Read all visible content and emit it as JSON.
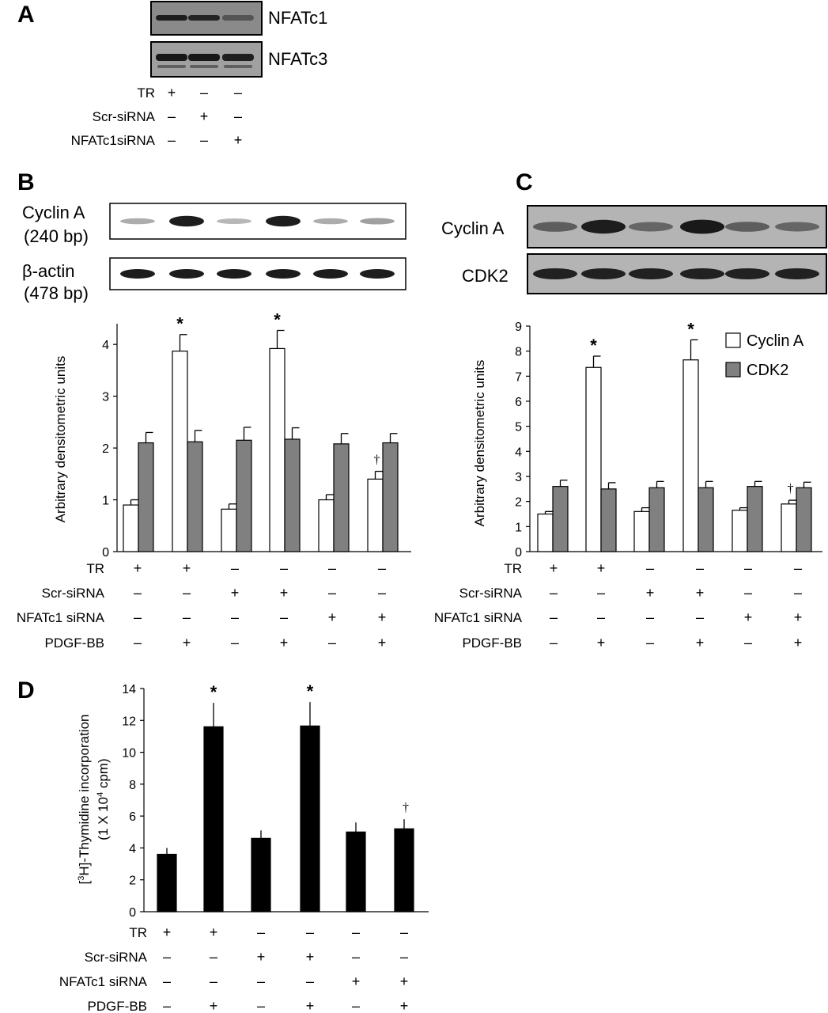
{
  "panels": {
    "A": {
      "letter": "A",
      "blots": [
        {
          "label": "NFATc1",
          "bands": [
            0.9,
            0.85,
            0.45
          ],
          "bg": "#8a8a8a"
        },
        {
          "label": "NFATc3",
          "bands": [
            0.95,
            0.95,
            0.9
          ],
          "bg": "#a0a0a0"
        }
      ],
      "treatments": [
        {
          "label": "TR",
          "marks": [
            "+",
            "–",
            "–"
          ]
        },
        {
          "label": "Scr-siRNA",
          "marks": [
            "–",
            "+",
            "–"
          ]
        },
        {
          "label": "NFATc1siRNA",
          "marks": [
            "–",
            "–",
            "+"
          ]
        }
      ]
    },
    "B": {
      "letter": "B",
      "blots": [
        {
          "label1": "Cyclin A",
          "label2": "(240 bp)",
          "bands": [
            0.35,
            0.95,
            0.3,
            0.95,
            0.35,
            0.4
          ]
        },
        {
          "label1": "β-actin",
          "label2": "(478 bp)",
          "bands": [
            0.95,
            0.95,
            0.95,
            0.95,
            0.95,
            0.95
          ]
        }
      ],
      "treatments": [
        {
          "label": "TR",
          "marks": [
            "+",
            "+",
            "–",
            "–",
            "–",
            "–"
          ]
        },
        {
          "label": "Scr-siRNA",
          "marks": [
            "–",
            "–",
            "+",
            "+",
            "–",
            "–"
          ]
        },
        {
          "label": "NFATc1 siRNA",
          "marks": [
            "–",
            "–",
            "–",
            "–",
            "+",
            "+"
          ]
        },
        {
          "label": "PDGF-BB",
          "marks": [
            "–",
            "+",
            "–",
            "+",
            "–",
            "+"
          ]
        }
      ]
    },
    "C": {
      "letter": "C",
      "blots": [
        {
          "label": "Cyclin A",
          "bands": [
            0.55,
            0.95,
            0.5,
            0.98,
            0.55,
            0.5
          ]
        },
        {
          "label": "CDK2",
          "bands": [
            0.92,
            0.92,
            0.92,
            0.92,
            0.92,
            0.92
          ]
        }
      ],
      "legend": [
        {
          "name": "Cyclin A",
          "color": "#ffffff"
        },
        {
          "name": "CDK2",
          "color": "#808080"
        }
      ],
      "treatments": [
        {
          "label": "TR",
          "marks": [
            "+",
            "+",
            "–",
            "–",
            "–",
            "–"
          ]
        },
        {
          "label": "Scr-siRNA",
          "marks": [
            "–",
            "–",
            "+",
            "+",
            "–",
            "–"
          ]
        },
        {
          "label": "NFATc1 siRNA",
          "marks": [
            "–",
            "–",
            "–",
            "–",
            "+",
            "+"
          ]
        },
        {
          "label": "PDGF-BB",
          "marks": [
            "–",
            "+",
            "–",
            "+",
            "–",
            "+"
          ]
        }
      ]
    },
    "D": {
      "letter": "D",
      "treatments": [
        {
          "label": "TR",
          "marks": [
            "+",
            "+",
            "–",
            "–",
            "–",
            "–"
          ]
        },
        {
          "label": "Scr-siRNA",
          "marks": [
            "–",
            "–",
            "+",
            "+",
            "–",
            "–"
          ]
        },
        {
          "label": "NFATc1 siRNA",
          "marks": [
            "–",
            "–",
            "–",
            "–",
            "+",
            "+"
          ]
        },
        {
          "label": "PDGF-BB",
          "marks": [
            "–",
            "+",
            "–",
            "+",
            "–",
            "+"
          ]
        }
      ]
    }
  },
  "colors": {
    "white_bar": "#ffffff",
    "gray_bar": "#808080",
    "black_bar": "#000000"
  },
  "chart_data": [
    {
      "panel": "B",
      "type": "bar",
      "ylabel": "Arbitrary densitometric units",
      "ylim": [
        0,
        4.4
      ],
      "yticks": [
        0,
        1,
        2,
        3,
        4
      ],
      "series": [
        {
          "values": [
            0.9,
            3.87,
            0.82,
            3.92,
            1.0,
            1.4
          ],
          "errors": [
            0.1,
            0.32,
            0.1,
            0.35,
            0.1,
            0.15
          ],
          "color": "#ffffff"
        },
        {
          "values": [
            2.1,
            2.12,
            2.15,
            2.17,
            2.08,
            2.1
          ],
          "errors": [
            0.2,
            0.22,
            0.25,
            0.22,
            0.2,
            0.18
          ],
          "color": "#808080"
        }
      ],
      "annotations": [
        {
          "group": 1,
          "text": "*"
        },
        {
          "group": 3,
          "text": "*"
        },
        {
          "group": 5,
          "text": "†"
        }
      ]
    },
    {
      "panel": "C",
      "type": "bar",
      "ylabel": "Arbitrary densitometric units",
      "ylim": [
        0,
        9
      ],
      "yticks": [
        0,
        1,
        2,
        3,
        4,
        5,
        6,
        7,
        8,
        9
      ],
      "series": [
        {
          "name": "Cyclin A",
          "values": [
            1.5,
            7.35,
            1.6,
            7.65,
            1.65,
            1.9
          ],
          "errors": [
            0.1,
            0.45,
            0.15,
            0.8,
            0.1,
            0.15
          ],
          "color": "#ffffff"
        },
        {
          "name": "CDK2",
          "values": [
            2.6,
            2.5,
            2.55,
            2.55,
            2.6,
            2.55
          ],
          "errors": [
            0.25,
            0.25,
            0.25,
            0.25,
            0.2,
            0.22
          ],
          "color": "#808080"
        }
      ],
      "annotations": [
        {
          "group": 1,
          "text": "*"
        },
        {
          "group": 3,
          "text": "*"
        },
        {
          "group": 5,
          "text": "†"
        }
      ]
    },
    {
      "panel": "D",
      "type": "bar",
      "ylabel_parts": [
        "[",
        "3",
        "H]-Thymidine incorporation"
      ],
      "ylabel2_parts": [
        "(1 X 10",
        "4",
        " cpm)"
      ],
      "ylim": [
        0,
        14
      ],
      "yticks": [
        0,
        2,
        4,
        6,
        8,
        10,
        12,
        14
      ],
      "series": [
        {
          "values": [
            3.6,
            11.6,
            4.6,
            11.65,
            5.0,
            5.2
          ],
          "errors": [
            0.4,
            1.5,
            0.5,
            1.5,
            0.6,
            0.6
          ],
          "color": "#000000"
        }
      ],
      "annotations": [
        {
          "group": 1,
          "text": "*"
        },
        {
          "group": 3,
          "text": "*"
        },
        {
          "group": 5,
          "text": "†"
        }
      ]
    }
  ]
}
